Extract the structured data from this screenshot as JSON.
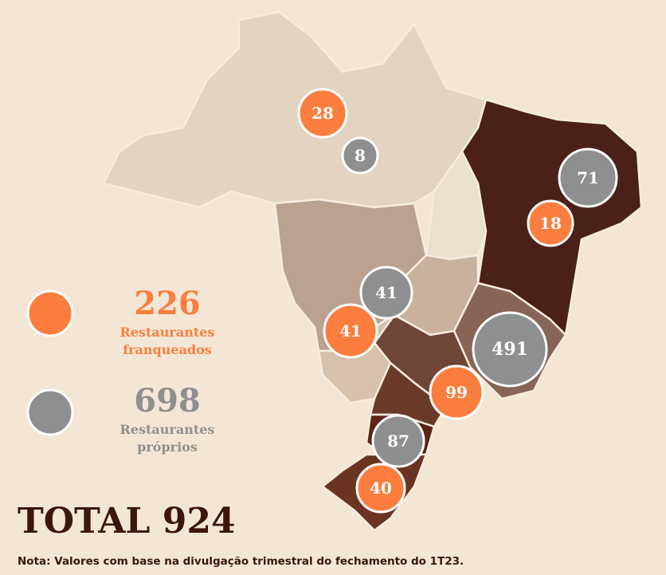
{
  "legend": [
    {
      "value": 226,
      "lines": [
        "Restaurantes",
        "franqueados"
      ],
      "color": "#fb7e3e"
    },
    {
      "value": 698,
      "lines": [
        "Restaurantes",
        "próprios"
      ],
      "color": "#8f8f8f"
    }
  ],
  "bubbles": [
    {
      "value": 28,
      "color": "#fb7e3e"
    },
    {
      "value": 8,
      "color": "#8f8f8f"
    },
    {
      "value": 71,
      "color": "#8f8f8f"
    },
    {
      "value": 18,
      "color": "#fb7e3e"
    },
    {
      "value": 41,
      "color": "#8f8f8f"
    },
    {
      "value": 41,
      "color": "#fb7e3e"
    },
    {
      "value": 491,
      "color": "#8f8f8f"
    },
    {
      "value": 99,
      "color": "#fb7e3e"
    },
    {
      "value": 87,
      "color": "#8f8f8f"
    },
    {
      "value": 40,
      "color": "#fb7e3e"
    }
  ],
  "total": "TOTAL 924",
  "note": "Nota: Valores com base na divulgação trimestral do fechamento do 1T23."
}
